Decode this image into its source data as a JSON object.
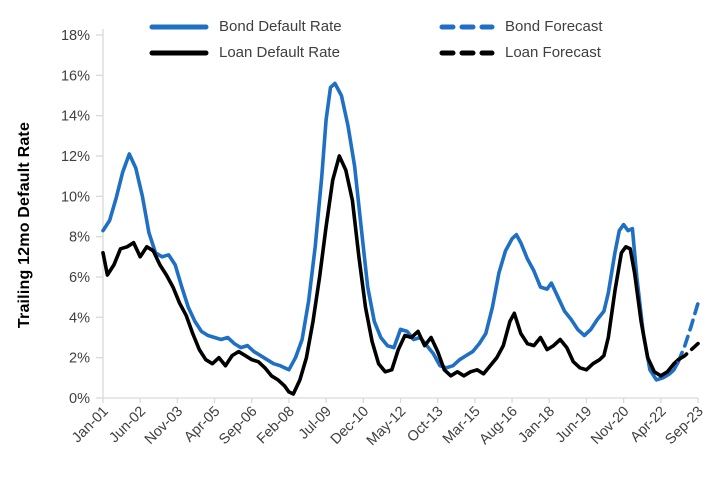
{
  "chart_data": {
    "type": "line",
    "title": "",
    "xlabel": "",
    "ylabel": "Trailing 12mo Default Rate",
    "ylim": [
      0,
      18
    ],
    "y_tick_step": 2,
    "y_tick_labels": [
      "0%",
      "2%",
      "4%",
      "6%",
      "8%",
      "10%",
      "12%",
      "14%",
      "16%",
      "18%"
    ],
    "x_tick_labels": [
      "Jan-01",
      "Jun-02",
      "Nov-03",
      "Apr-05",
      "Sep-06",
      "Feb-08",
      "Jul-09",
      "Dec-10",
      "May-12",
      "Oct-13",
      "Mar-15",
      "Aug-16",
      "Jan-18",
      "Jun-19",
      "Nov-20",
      "Apr-22",
      "Sep-23"
    ],
    "x_range": [
      "Jan-01",
      "Sep-23"
    ],
    "grid": "off",
    "legend_position": "top",
    "axis_color": "#d9d9d9",
    "tick_text_color": "#3f3f3f",
    "series": [
      {
        "id": "bond-default-rate",
        "name": "Bond Default Rate",
        "color": "#1f6fc4",
        "dashed": false,
        "points": [
          [
            "Jan-01",
            8.3
          ],
          [
            "Apr-01",
            8.8
          ],
          [
            "Jul-01",
            9.9
          ],
          [
            "Oct-01",
            11.2
          ],
          [
            "Jan-02",
            12.1
          ],
          [
            "Apr-02",
            11.4
          ],
          [
            "Jul-02",
            10.0
          ],
          [
            "Oct-02",
            8.2
          ],
          [
            "Jan-03",
            7.2
          ],
          [
            "Apr-03",
            7.0
          ],
          [
            "Jul-03",
            7.1
          ],
          [
            "Oct-03",
            6.6
          ],
          [
            "Jan-04",
            5.5
          ],
          [
            "Apr-04",
            4.5
          ],
          [
            "Jul-04",
            3.8
          ],
          [
            "Oct-04",
            3.3
          ],
          [
            "Jan-05",
            3.1
          ],
          [
            "Apr-05",
            3.0
          ],
          [
            "Jul-05",
            2.9
          ],
          [
            "Oct-05",
            3.0
          ],
          [
            "Jan-06",
            2.7
          ],
          [
            "Apr-06",
            2.5
          ],
          [
            "Jul-06",
            2.6
          ],
          [
            "Oct-06",
            2.3
          ],
          [
            "Jan-07",
            2.1
          ],
          [
            "Apr-07",
            1.9
          ],
          [
            "Jul-07",
            1.7
          ],
          [
            "Oct-07",
            1.6
          ],
          [
            "Feb-08",
            1.4
          ],
          [
            "May-08",
            2.0
          ],
          [
            "Aug-08",
            2.9
          ],
          [
            "Nov-08",
            4.8
          ],
          [
            "Feb-09",
            7.5
          ],
          [
            "May-09",
            11.0
          ],
          [
            "Jul-09",
            13.8
          ],
          [
            "Sep-09",
            15.4
          ],
          [
            "Nov-09",
            15.6
          ],
          [
            "Feb-10",
            15.0
          ],
          [
            "May-10",
            13.5
          ],
          [
            "Aug-10",
            11.5
          ],
          [
            "Nov-10",
            8.5
          ],
          [
            "Feb-11",
            5.5
          ],
          [
            "May-11",
            3.8
          ],
          [
            "Aug-11",
            3.0
          ],
          [
            "Nov-11",
            2.6
          ],
          [
            "Feb-12",
            2.5
          ],
          [
            "May-12",
            3.4
          ],
          [
            "Aug-12",
            3.3
          ],
          [
            "Nov-12",
            2.9
          ],
          [
            "Feb-13",
            3.0
          ],
          [
            "May-13",
            2.6
          ],
          [
            "Aug-13",
            2.2
          ],
          [
            "Nov-13",
            1.6
          ],
          [
            "Feb-14",
            1.5
          ],
          [
            "May-14",
            1.6
          ],
          [
            "Aug-14",
            1.9
          ],
          [
            "Nov-14",
            2.1
          ],
          [
            "Feb-15",
            2.3
          ],
          [
            "May-15",
            2.7
          ],
          [
            "Aug-15",
            3.2
          ],
          [
            "Nov-15",
            4.5
          ],
          [
            "Feb-16",
            6.2
          ],
          [
            "May-16",
            7.3
          ],
          [
            "Aug-16",
            7.9
          ],
          [
            "Oct-16",
            8.1
          ],
          [
            "Dec-16",
            7.7
          ],
          [
            "Mar-17",
            6.9
          ],
          [
            "Jun-17",
            6.3
          ],
          [
            "Sep-17",
            5.5
          ],
          [
            "Dec-17",
            5.4
          ],
          [
            "Feb-18",
            5.7
          ],
          [
            "May-18",
            5.0
          ],
          [
            "Aug-18",
            4.3
          ],
          [
            "Nov-18",
            3.9
          ],
          [
            "Feb-19",
            3.4
          ],
          [
            "May-19",
            3.1
          ],
          [
            "Aug-19",
            3.4
          ],
          [
            "Nov-19",
            3.9
          ],
          [
            "Feb-20",
            4.3
          ],
          [
            "Apr-20",
            5.2
          ],
          [
            "Jul-20",
            7.2
          ],
          [
            "Sep-20",
            8.3
          ],
          [
            "Nov-20",
            8.6
          ],
          [
            "Jan-21",
            8.3
          ],
          [
            "Mar-21",
            8.4
          ],
          [
            "May-21",
            6.0
          ],
          [
            "Aug-21",
            3.2
          ],
          [
            "Nov-21",
            1.4
          ],
          [
            "Feb-22",
            0.9
          ],
          [
            "May-22",
            1.0
          ],
          [
            "Aug-22",
            1.2
          ],
          [
            "Oct-22",
            1.4
          ],
          [
            "Dec-22",
            1.8
          ]
        ]
      },
      {
        "id": "loan-default-rate",
        "name": "Loan Default Rate",
        "color": "#000000",
        "dashed": false,
        "points": [
          [
            "Jan-01",
            7.2
          ],
          [
            "Mar-01",
            6.1
          ],
          [
            "Jun-01",
            6.6
          ],
          [
            "Sep-01",
            7.4
          ],
          [
            "Dec-01",
            7.5
          ],
          [
            "Mar-02",
            7.7
          ],
          [
            "Jun-02",
            7.0
          ],
          [
            "Sep-02",
            7.5
          ],
          [
            "Dec-02",
            7.3
          ],
          [
            "Mar-03",
            6.6
          ],
          [
            "Jun-03",
            6.1
          ],
          [
            "Sep-03",
            5.5
          ],
          [
            "Dec-03",
            4.7
          ],
          [
            "Mar-04",
            4.1
          ],
          [
            "Jun-04",
            3.2
          ],
          [
            "Sep-04",
            2.4
          ],
          [
            "Dec-04",
            1.9
          ],
          [
            "Mar-05",
            1.7
          ],
          [
            "Jun-05",
            2.0
          ],
          [
            "Sep-05",
            1.6
          ],
          [
            "Dec-05",
            2.1
          ],
          [
            "Mar-06",
            2.3
          ],
          [
            "Jun-06",
            2.1
          ],
          [
            "Sep-06",
            1.9
          ],
          [
            "Dec-06",
            1.8
          ],
          [
            "Mar-07",
            1.5
          ],
          [
            "Jun-07",
            1.1
          ],
          [
            "Sep-07",
            0.9
          ],
          [
            "Dec-07",
            0.6
          ],
          [
            "Feb-08",
            0.3
          ],
          [
            "Apr-08",
            0.2
          ],
          [
            "Jul-08",
            0.9
          ],
          [
            "Oct-08",
            2.0
          ],
          [
            "Jan-09",
            3.8
          ],
          [
            "Apr-09",
            6.0
          ],
          [
            "Jul-09",
            8.5
          ],
          [
            "Oct-09",
            10.8
          ],
          [
            "Jan-10",
            12.0
          ],
          [
            "Apr-10",
            11.3
          ],
          [
            "Jul-10",
            9.8
          ],
          [
            "Oct-10",
            7.0
          ],
          [
            "Jan-11",
            4.5
          ],
          [
            "Apr-11",
            2.8
          ],
          [
            "Jul-11",
            1.7
          ],
          [
            "Oct-11",
            1.3
          ],
          [
            "Jan-12",
            1.4
          ],
          [
            "Apr-12",
            2.4
          ],
          [
            "Jul-12",
            3.1
          ],
          [
            "Oct-12",
            3.0
          ],
          [
            "Jan-13",
            3.3
          ],
          [
            "Apr-13",
            2.6
          ],
          [
            "Jul-13",
            3.0
          ],
          [
            "Oct-13",
            2.3
          ],
          [
            "Jan-14",
            1.4
          ],
          [
            "Apr-14",
            1.1
          ],
          [
            "Jul-14",
            1.3
          ],
          [
            "Oct-14",
            1.1
          ],
          [
            "Jan-15",
            1.3
          ],
          [
            "Apr-15",
            1.4
          ],
          [
            "Jul-15",
            1.2
          ],
          [
            "Oct-15",
            1.6
          ],
          [
            "Jan-16",
            2.0
          ],
          [
            "Apr-16",
            2.6
          ],
          [
            "Jul-16",
            3.8
          ],
          [
            "Sep-16",
            4.2
          ],
          [
            "Dec-16",
            3.2
          ],
          [
            "Mar-17",
            2.7
          ],
          [
            "Jun-17",
            2.6
          ],
          [
            "Sep-17",
            3.0
          ],
          [
            "Dec-17",
            2.4
          ],
          [
            "Mar-18",
            2.6
          ],
          [
            "Jun-18",
            2.9
          ],
          [
            "Sep-18",
            2.5
          ],
          [
            "Dec-18",
            1.8
          ],
          [
            "Mar-19",
            1.5
          ],
          [
            "Jun-19",
            1.4
          ],
          [
            "Sep-19",
            1.7
          ],
          [
            "Dec-19",
            1.9
          ],
          [
            "Feb-20",
            2.1
          ],
          [
            "Apr-20",
            3.0
          ],
          [
            "Jul-20",
            5.3
          ],
          [
            "Oct-20",
            7.2
          ],
          [
            "Dec-20",
            7.5
          ],
          [
            "Feb-21",
            7.4
          ],
          [
            "Apr-21",
            6.2
          ],
          [
            "Jul-21",
            3.8
          ],
          [
            "Oct-21",
            2.0
          ],
          [
            "Jan-22",
            1.3
          ],
          [
            "Apr-22",
            1.1
          ],
          [
            "Jul-22",
            1.3
          ],
          [
            "Oct-22",
            1.7
          ],
          [
            "Dec-22",
            1.9
          ]
        ]
      },
      {
        "id": "bond-forecast",
        "name": "Bond Forecast",
        "color": "#1f6fc4",
        "dashed": true,
        "points": [
          [
            "Dec-22",
            1.8
          ],
          [
            "Mar-23",
            2.6
          ],
          [
            "Jun-23",
            3.6
          ],
          [
            "Sep-23",
            4.7
          ]
        ]
      },
      {
        "id": "loan-forecast",
        "name": "Loan Forecast",
        "color": "#000000",
        "dashed": true,
        "points": [
          [
            "Dec-22",
            1.9
          ],
          [
            "Mar-23",
            2.1
          ],
          [
            "Jun-23",
            2.4
          ],
          [
            "Sep-23",
            2.7
          ]
        ]
      }
    ]
  },
  "legend": {
    "items": [
      {
        "label": "Bond Default Rate",
        "series": 0
      },
      {
        "label": "Bond Forecast",
        "series": 2
      },
      {
        "label": "Loan Default Rate",
        "series": 1
      },
      {
        "label": "Loan Forecast",
        "series": 3
      }
    ]
  },
  "axis": {
    "y_title": "Trailing 12mo Default Rate"
  }
}
